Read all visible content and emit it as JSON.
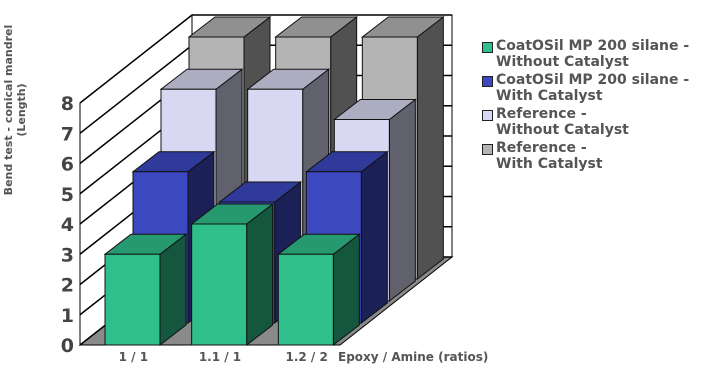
{
  "chart_data": {
    "type": "bar3d",
    "y_label": "Bend test - conical mandrel\n(Length)",
    "x_label": "Epoxy / Amine (ratios)",
    "categories": [
      "1 / 1",
      "1.1 / 1",
      "1.2 / 2"
    ],
    "series": [
      {
        "name": "CoatOSil MP 200 silane -\nWithout Catalyst",
        "color": "#2fbf8c",
        "values": [
          3,
          4,
          3
        ]
      },
      {
        "name": "CoatOSil MP 200 silane -\nWith Catalyst",
        "color": "#3c48c0",
        "values": [
          5,
          4,
          5
        ]
      },
      {
        "name": "Reference -\nWithout Catalyst",
        "color": "#d8d8f2",
        "values": [
          7,
          7,
          6
        ]
      },
      {
        "name": "Reference -\nWith Catalyst",
        "color": "#b4b4b4",
        "values": [
          8,
          8,
          8
        ]
      }
    ],
    "ylim": [
      0,
      8
    ],
    "yticks": [
      0,
      1,
      2,
      3,
      4,
      5,
      6,
      7,
      8
    ],
    "grid": true
  }
}
